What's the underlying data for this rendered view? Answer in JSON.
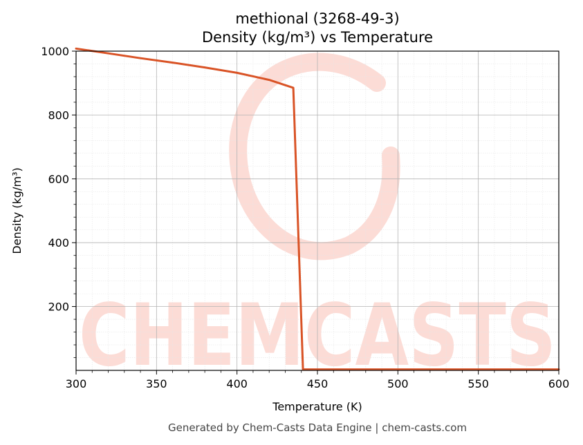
{
  "chart_data": {
    "type": "line",
    "title": "methional (3268-49-3)",
    "subtitle": "Density (kg/m³) vs Temperature",
    "xlabel": "Temperature (K)",
    "ylabel": "Density (kg/m³)",
    "xlim": [
      300,
      600
    ],
    "ylim": [
      0,
      1000
    ],
    "xticks": [
      300,
      350,
      400,
      450,
      500,
      550,
      600
    ],
    "yticks": [
      200,
      400,
      600,
      800,
      1000
    ],
    "xtick_labels": [
      "300",
      "350",
      "400",
      "450",
      "500",
      "550",
      "600"
    ],
    "ytick_labels": [
      "200",
      "400",
      "600",
      "800",
      "1000"
    ],
    "grid": true,
    "series": [
      {
        "color": "#d95326",
        "x": [
          300,
          320,
          340,
          360,
          380,
          400,
          420,
          435,
          441,
          460,
          500,
          550,
          600
        ],
        "y": [
          1008,
          993,
          978,
          964,
          949,
          932,
          910,
          885,
          3,
          3,
          3,
          3,
          3
        ]
      }
    ]
  },
  "watermark": {
    "text": "CHEMCASTS",
    "color": "#fcdcd6"
  },
  "footer": "Generated by Chem-Casts Data Engine | chem-casts.com"
}
